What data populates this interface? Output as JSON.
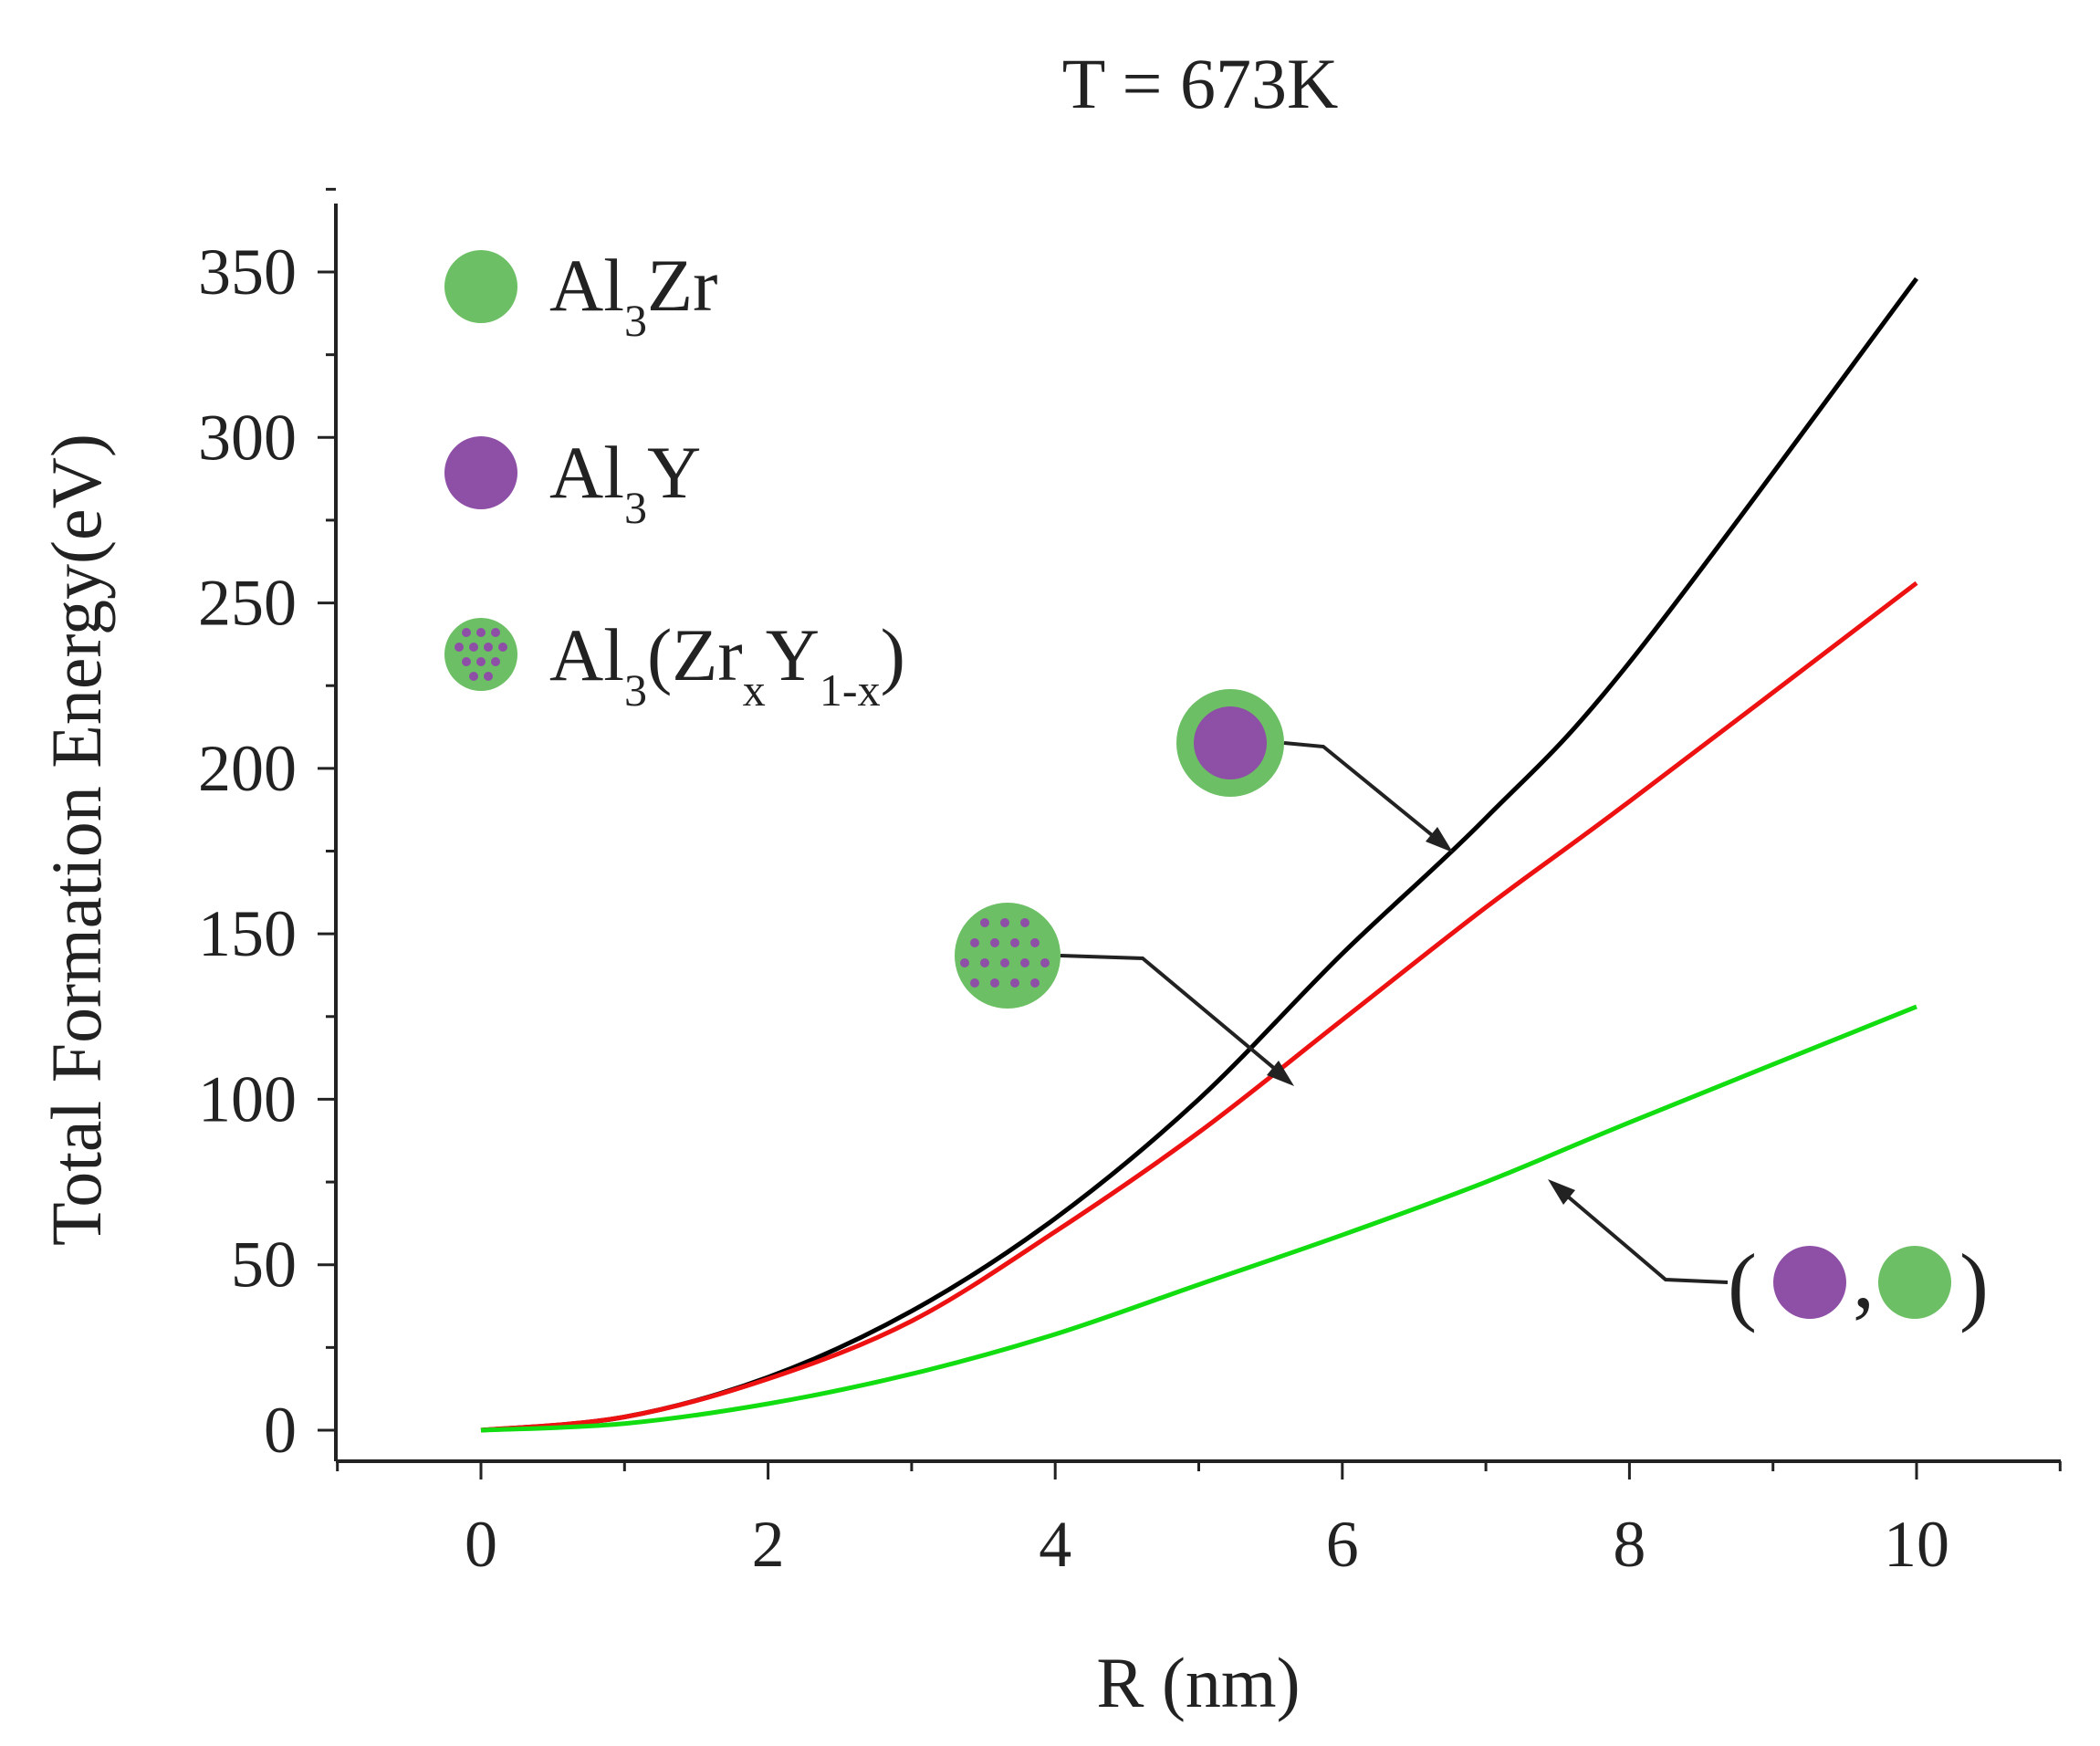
{
  "chart_data": {
    "type": "line",
    "title": "T = 673K",
    "xlabel": "R (nm)",
    "ylabel": "Total Formation Energy(eV)",
    "xlim": [
      -1,
      11
    ],
    "ylim": [
      -10,
      370
    ],
    "xticks": [
      0,
      2,
      4,
      6,
      8,
      10
    ],
    "yticks": [
      0,
      50,
      100,
      150,
      200,
      250,
      300,
      350
    ],
    "x": [
      0,
      1,
      2,
      3,
      4,
      5,
      6,
      7,
      8,
      10
    ],
    "series": [
      {
        "name": "Al3Y core / Al3Zr shell",
        "color": "#000000",
        "values": [
          0,
          4,
          16,
          36,
          64,
          100,
          144,
          185,
          232,
          348
        ]
      },
      {
        "name": "Al3(ZrxY1-x)",
        "color": "#ee1111",
        "values": [
          0,
          4,
          15.5,
          33,
          60,
          90,
          124,
          158,
          190,
          256
        ]
      },
      {
        "name": "separate Al3Y and Al3Zr",
        "color": "#11dd11",
        "values": [
          0,
          2,
          8,
          17,
          29,
          44,
          59,
          75,
          93,
          128
        ]
      }
    ],
    "legend": [
      {
        "label": "Al",
        "sub": "3",
        "rest": "Zr",
        "icon": "green-circle"
      },
      {
        "label": "Al",
        "sub": "3",
        "rest": "Y",
        "icon": "purple-circle"
      },
      {
        "label": "Al",
        "sub": "3",
        "rest": "(Zr",
        "sub2": "x",
        "rest2": "Y",
        "sub3": "1-x",
        "rest3": ")",
        "icon": "dotted-green-circle"
      }
    ],
    "legend_position": "top-left",
    "annotations": [
      {
        "target": "Al3Y core / Al3Zr shell",
        "icon": "core-shell-circle"
      },
      {
        "target": "Al3(ZrxY1-x)",
        "icon": "dotted-green-circle"
      },
      {
        "target": "separate Al3Y and Al3Zr",
        "icon": "pair-circles",
        "open": "(",
        "sep": ",",
        "close": ")"
      }
    ],
    "colors": {
      "green": "#6cbf64",
      "purple": "#8e4fa6"
    }
  }
}
